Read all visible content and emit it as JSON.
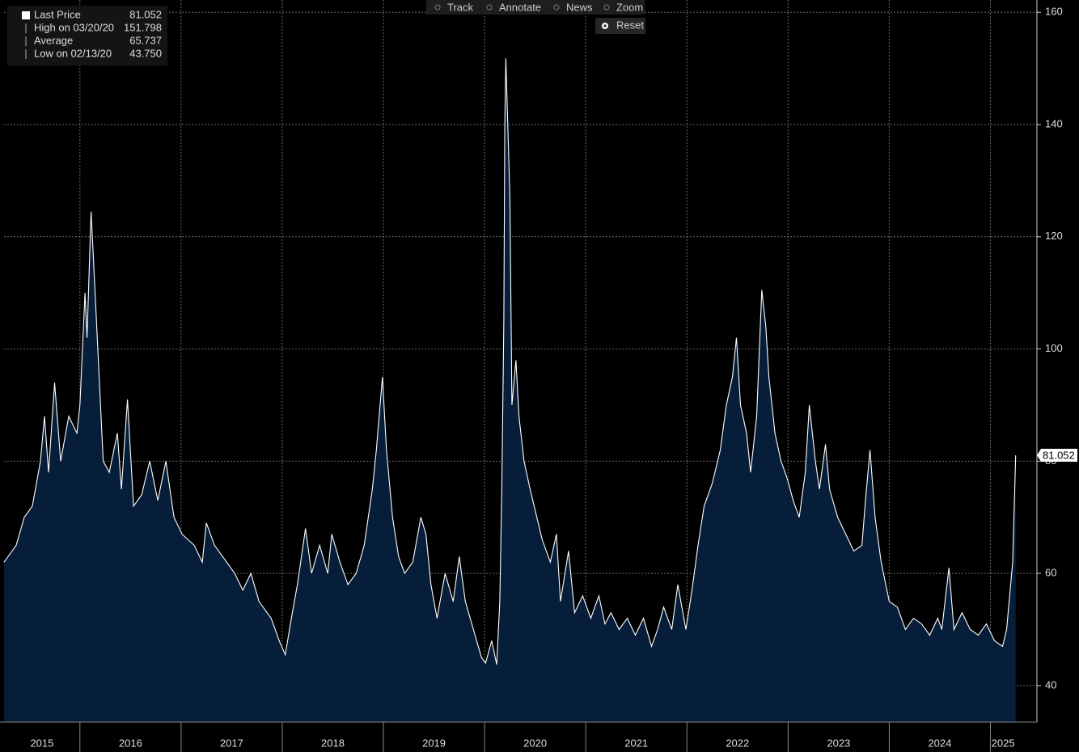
{
  "toolbar": {
    "buttons": [
      "Track",
      "Annotate",
      "News",
      "Zoom"
    ],
    "reset": "Reset"
  },
  "chart_data": {
    "type": "area",
    "x": [
      2015.25,
      2015.37,
      2015.45,
      2015.53,
      2015.61,
      2015.65,
      2015.69,
      2015.75,
      2015.81,
      2015.89,
      2015.97,
      2016.0,
      2016.05,
      2016.07,
      2016.11,
      2016.15,
      2016.19,
      2016.23,
      2016.29,
      2016.37,
      2016.41,
      2016.47,
      2016.53,
      2016.61,
      2016.69,
      2016.77,
      2016.85,
      2016.93,
      2017.01,
      2017.13,
      2017.21,
      2017.25,
      2017.33,
      2017.45,
      2017.53,
      2017.61,
      2017.69,
      2017.77,
      2017.89,
      2017.97,
      2018.03,
      2018.09,
      2018.15,
      2018.23,
      2018.29,
      2018.37,
      2018.45,
      2018.49,
      2018.57,
      2018.65,
      2018.73,
      2018.81,
      2018.89,
      2018.93,
      2018.99,
      2019.03,
      2019.09,
      2019.15,
      2019.21,
      2019.29,
      2019.37,
      2019.42,
      2019.47,
      2019.53,
      2019.61,
      2019.69,
      2019.75,
      2019.81,
      2019.89,
      2019.97,
      2020.01,
      2020.07,
      2020.12,
      2020.15,
      2020.17,
      2020.19,
      2020.2,
      2020.21,
      2020.25,
      2020.27,
      2020.31,
      2020.34,
      2020.39,
      2020.45,
      2020.49,
      2020.57,
      2020.65,
      2020.71,
      2020.75,
      2020.83,
      2020.89,
      2020.97,
      2021.05,
      2021.13,
      2021.19,
      2021.25,
      2021.33,
      2021.41,
      2021.49,
      2021.57,
      2021.65,
      2021.71,
      2021.77,
      2021.85,
      2021.91,
      2021.99,
      2022.05,
      2022.11,
      2022.17,
      2022.25,
      2022.33,
      2022.39,
      2022.45,
      2022.49,
      2022.53,
      2022.59,
      2022.63,
      2022.69,
      2022.74,
      2022.78,
      2022.81,
      2022.87,
      2022.93,
      2022.99,
      2023.05,
      2023.11,
      2023.17,
      2023.21,
      2023.27,
      2023.31,
      2023.37,
      2023.41,
      2023.49,
      2023.57,
      2023.65,
      2023.73,
      2023.77,
      2023.81,
      2023.86,
      2023.92,
      2024.0,
      2024.08,
      2024.16,
      2024.24,
      2024.32,
      2024.4,
      2024.48,
      2024.52,
      2024.59,
      2024.64,
      2024.72,
      2024.8,
      2024.88,
      2024.96,
      2025.04,
      2025.12,
      2025.16,
      2025.2,
      2025.22,
      2025.25
    ],
    "series": [
      {
        "name": "Last Price",
        "color": "#ffffff",
        "fill": "#061e3a",
        "values": [
          62,
          65,
          70,
          72,
          80,
          88,
          78,
          94,
          80,
          88,
          85,
          90,
          110,
          102,
          124.5,
          110,
          95,
          80,
          78,
          85,
          75,
          91,
          72,
          74,
          80,
          73,
          80,
          70,
          67,
          65,
          62,
          69,
          65,
          62,
          60,
          57,
          60,
          55,
          52,
          48,
          45.5,
          52,
          58,
          68,
          60,
          65,
          60,
          67,
          62,
          58,
          60,
          65,
          75,
          82,
          95,
          82,
          70,
          63,
          60,
          62,
          70,
          67,
          58,
          52,
          60,
          55,
          63,
          55,
          50,
          45,
          44,
          48,
          43.75,
          55,
          75,
          105,
          140,
          151.798,
          127,
          90,
          98,
          88,
          80,
          75,
          72,
          66,
          62,
          67,
          55,
          64,
          53,
          56,
          52,
          56,
          51,
          53,
          50,
          52,
          49,
          52,
          47,
          50,
          54,
          50,
          58,
          50,
          57,
          65,
          72,
          76,
          82,
          90,
          95,
          102,
          90,
          85,
          78,
          88,
          110.5,
          104,
          95,
          85,
          80,
          77,
          73,
          70,
          78,
          90,
          80,
          75,
          83,
          75,
          70,
          67,
          64,
          65,
          74,
          82,
          70,
          62,
          55,
          54,
          50,
          52,
          51,
          49,
          52,
          50,
          61,
          50,
          53,
          50,
          49,
          51,
          48,
          47,
          50,
          58,
          62,
          81.052
        ]
      }
    ],
    "xlim": [
      2015.25,
      2025.46
    ],
    "xticks": [
      2015,
      2016,
      2017,
      2018,
      2019,
      2020,
      2021,
      2022,
      2023,
      2024,
      2025
    ],
    "ylim": [
      33.5,
      162.2
    ],
    "yticks": [
      40,
      60,
      80,
      100,
      120,
      140,
      160
    ],
    "grid": true,
    "legend": {
      "entries": [
        {
          "label": "Last Price",
          "value": 81.052
        },
        {
          "label": "High on 03/20/20",
          "value": 151.798
        },
        {
          "label": "Average",
          "value": 65.737
        },
        {
          "label": "Low on 02/13/20",
          "value": 43.75,
          "value_label": "43.750"
        }
      ]
    }
  }
}
